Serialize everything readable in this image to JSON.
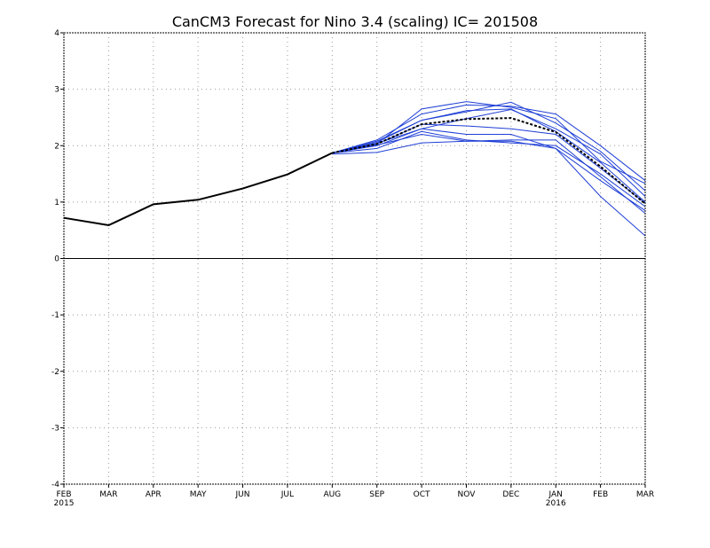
{
  "chart_data": {
    "type": "line",
    "title": "CanCM3 Forecast for Nino 3.4 (scaling) IC= 201508",
    "xlabel": "",
    "ylabel": "",
    "ylim": [
      -4,
      4
    ],
    "yticks": [
      "-4",
      "-3",
      "-2",
      "-1",
      "0",
      "1",
      "2",
      "3",
      "4"
    ],
    "x_ticks": [
      {
        "month": "FEB",
        "year": "2015"
      },
      {
        "month": "MAR",
        "year": ""
      },
      {
        "month": "APR",
        "year": ""
      },
      {
        "month": "MAY",
        "year": ""
      },
      {
        "month": "JUN",
        "year": ""
      },
      {
        "month": "JUL",
        "year": ""
      },
      {
        "month": "AUG",
        "year": ""
      },
      {
        "month": "SEP",
        "year": ""
      },
      {
        "month": "OCT",
        "year": ""
      },
      {
        "month": "NOV",
        "year": ""
      },
      {
        "month": "DEC",
        "year": ""
      },
      {
        "month": "JAN",
        "year": "2016"
      },
      {
        "month": "FEB",
        "year": ""
      },
      {
        "month": "MAR",
        "year": ""
      }
    ],
    "grid": true,
    "colors": {
      "observed": "#000000",
      "members": "#1f3fd6",
      "mean": "#000000",
      "grid": "#999999"
    },
    "observed": {
      "x_start_index": 0,
      "values": [
        0.72,
        0.59,
        0.96,
        1.04,
        1.24,
        1.49,
        1.87
      ]
    },
    "ensemble_mean": {
      "x_start_index": 6,
      "values": [
        1.87,
        2.03,
        2.38,
        2.47,
        2.49,
        2.24,
        1.63,
        0.97
      ]
    },
    "members": [
      {
        "x_start_index": 6,
        "values": [
          1.87,
          2.03,
          2.65,
          2.78,
          2.68,
          2.48,
          1.72,
          1.33
        ]
      },
      {
        "x_start_index": 6,
        "values": [
          1.87,
          2.1,
          2.56,
          2.72,
          2.7,
          2.56,
          2.0,
          1.38
        ]
      },
      {
        "x_start_index": 6,
        "values": [
          1.87,
          2.06,
          2.45,
          2.6,
          2.77,
          2.4,
          1.9,
          1.2
        ]
      },
      {
        "x_start_index": 6,
        "values": [
          1.87,
          2.0,
          2.3,
          2.48,
          2.64,
          2.3,
          1.85,
          1.1
        ]
      },
      {
        "x_start_index": 6,
        "values": [
          1.87,
          2.03,
          2.38,
          2.35,
          2.3,
          2.2,
          1.6,
          0.98
        ]
      },
      {
        "x_start_index": 6,
        "values": [
          1.87,
          1.95,
          2.25,
          2.1,
          2.05,
          2.0,
          1.5,
          0.92
        ]
      },
      {
        "x_start_index": 6,
        "values": [
          1.85,
          1.88,
          2.05,
          2.08,
          2.08,
          1.95,
          1.38,
          0.85
        ]
      },
      {
        "x_start_index": 6,
        "values": [
          1.87,
          2.01,
          2.2,
          2.08,
          2.1,
          2.1,
          1.45,
          0.8
        ]
      },
      {
        "x_start_index": 6,
        "values": [
          1.87,
          2.04,
          2.3,
          2.2,
          2.2,
          1.95,
          1.1,
          0.4
        ]
      },
      {
        "x_start_index": 6,
        "values": [
          1.87,
          2.08,
          2.45,
          2.62,
          2.65,
          2.25,
          1.7,
          1.0
        ]
      }
    ]
  }
}
